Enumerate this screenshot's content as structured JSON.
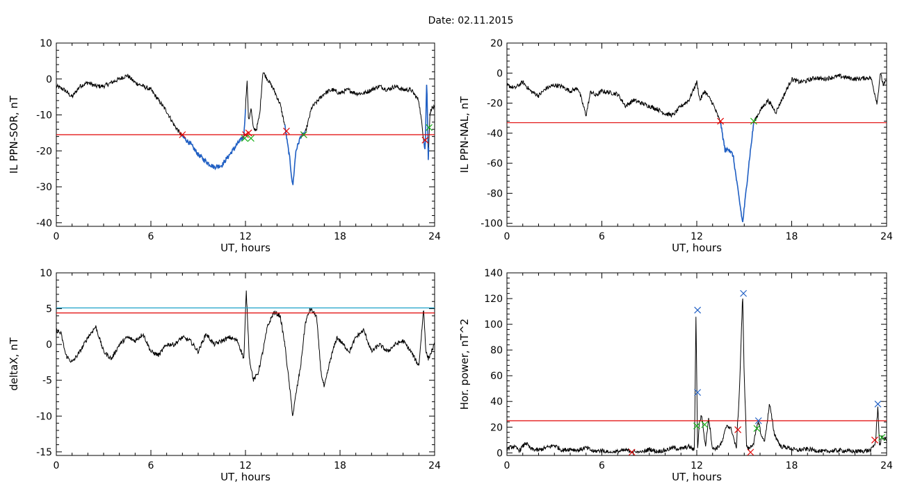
{
  "page": {
    "title": "Date:  02.11.2015"
  },
  "colors": {
    "trace": "#000000",
    "threshold": "#e00000",
    "highlight": "#1f5fc4",
    "marker_red": "#e00000",
    "marker_green": "#18b018",
    "marker_blue": "#1f5fc4",
    "cyan": "#1aa0c8"
  },
  "chart_data": [
    {
      "id": "il-sor",
      "type": "line",
      "xlabel": "UT, hours",
      "ylabel": "IL PPN-SOR, nT",
      "xlim": [
        0,
        24
      ],
      "ylim": [
        -41,
        10
      ],
      "xticks": [
        0,
        6,
        12,
        18,
        24
      ],
      "yticks": [
        -40,
        -30,
        -20,
        -10,
        0,
        10
      ],
      "threshold": -15.5,
      "x": [
        0,
        0.5,
        1.0,
        1.5,
        2.0,
        2.5,
        3.0,
        3.5,
        4.0,
        4.5,
        5.0,
        5.5,
        6.0,
        6.5,
        7.0,
        7.5,
        8.0,
        8.5,
        9.0,
        9.5,
        10.0,
        10.5,
        11.0,
        11.5,
        11.9,
        12.1,
        12.2,
        12.35,
        12.5,
        12.7,
        12.9,
        13.1,
        13.4,
        13.8,
        14.2,
        14.5,
        14.8,
        15.0,
        15.2,
        15.5,
        15.8,
        16.2,
        16.6,
        17.0,
        17.5,
        18.0,
        18.5,
        19.0,
        19.5,
        20.0,
        20.5,
        21.0,
        21.5,
        22.0,
        22.5,
        23.0,
        23.4,
        23.5,
        23.6,
        23.7,
        23.8,
        24.0
      ],
      "y": [
        -2,
        -3,
        -5,
        -2,
        -1,
        -2,
        -2,
        -1,
        0,
        1,
        -1,
        -2,
        -3,
        -6,
        -9,
        -13,
        -16,
        -18,
        -21,
        -23,
        -24.5,
        -24,
        -21,
        -18,
        -16,
        0,
        -12,
        -8,
        -14,
        -14,
        -10,
        2,
        0,
        -3,
        -7,
        -13,
        -22,
        -30,
        -20,
        -16,
        -15,
        -8,
        -6,
        -4,
        -3,
        -4,
        -3,
        -4,
        -4,
        -3,
        -2,
        -3,
        -2,
        -3,
        -3,
        -6,
        -20,
        0,
        -22,
        -10,
        -8,
        -8
      ],
      "highlight_ranges": [
        [
          8.0,
          12.0
        ],
        [
          14.5,
          15.8
        ],
        [
          23.3,
          23.65
        ]
      ],
      "markers": [
        {
          "x": 8.0,
          "y": -15.5,
          "color": "red"
        },
        {
          "x": 12.0,
          "y": -15.5,
          "color": "red"
        },
        {
          "x": 12.2,
          "y": -15.0,
          "color": "red"
        },
        {
          "x": 11.95,
          "y": -16.5,
          "color": "green"
        },
        {
          "x": 12.35,
          "y": -16.5,
          "color": "green"
        },
        {
          "x": 14.6,
          "y": -14.5,
          "color": "red"
        },
        {
          "x": 15.7,
          "y": -15.5,
          "color": "red"
        },
        {
          "x": 15.7,
          "y": -15.5,
          "color": "green"
        },
        {
          "x": 23.4,
          "y": -17.0,
          "color": "red"
        },
        {
          "x": 23.65,
          "y": -13.5,
          "color": "green"
        }
      ]
    },
    {
      "id": "il-nal",
      "type": "line",
      "xlabel": "UT, hours",
      "ylabel": "IL PPN-NAL, nT",
      "xlim": [
        0,
        24
      ],
      "ylim": [
        -102,
        20
      ],
      "xticks": [
        0,
        6,
        12,
        18,
        24
      ],
      "yticks": [
        -100,
        -80,
        -60,
        -40,
        -20,
        0,
        20
      ],
      "threshold": -33,
      "x": [
        0,
        0.5,
        1.0,
        1.5,
        2.0,
        2.5,
        3.0,
        3.5,
        4.0,
        4.5,
        5.0,
        5.3,
        5.6,
        6.0,
        6.5,
        7.0,
        7.5,
        8.0,
        8.5,
        9.0,
        9.5,
        10.0,
        10.5,
        11.0,
        11.5,
        12.0,
        12.2,
        12.5,
        13.0,
        13.5,
        13.8,
        14.0,
        14.3,
        14.6,
        14.9,
        15.1,
        15.3,
        15.6,
        16.0,
        16.5,
        17.0,
        17.5,
        18.0,
        18.5,
        19.0,
        19.5,
        20.0,
        21.0,
        22.0,
        23.0,
        23.4,
        23.6,
        23.8,
        24.0
      ],
      "y": [
        -8,
        -10,
        -6,
        -12,
        -15,
        -10,
        -8,
        -9,
        -12,
        -10,
        -28,
        -12,
        -15,
        -12,
        -13,
        -14,
        -22,
        -18,
        -20,
        -22,
        -24,
        -27,
        -28,
        -22,
        -18,
        -6,
        -18,
        -12,
        -20,
        -33,
        -52,
        -50,
        -55,
        -78,
        -100,
        -80,
        -60,
        -33,
        -25,
        -18,
        -26,
        -15,
        -4,
        -6,
        -5,
        -3,
        -4,
        -2,
        -4,
        -3,
        -20,
        0,
        -8,
        -5
      ],
      "highlight_ranges": [
        [
          13.5,
          15.6
        ]
      ],
      "markers": [
        {
          "x": 13.5,
          "y": -32,
          "color": "red"
        },
        {
          "x": 15.6,
          "y": -32,
          "color": "green"
        }
      ]
    },
    {
      "id": "deltax",
      "type": "line",
      "xlabel": "UT, hours",
      "ylabel": "deltaX, nT",
      "xlim": [
        0,
        24
      ],
      "ylim": [
        -15.5,
        10
      ],
      "xticks": [
        0,
        6,
        12,
        18,
        24
      ],
      "yticks": [
        -15,
        -10,
        -5,
        0,
        5,
        10
      ],
      "threshold": 4.4,
      "threshold2": 5.1,
      "x": [
        0,
        0.3,
        0.6,
        1.0,
        1.5,
        2.0,
        2.5,
        3.0,
        3.5,
        4.0,
        4.5,
        5.0,
        5.5,
        6.0,
        6.5,
        7.0,
        7.5,
        8.0,
        8.5,
        9.0,
        9.5,
        10.0,
        10.5,
        11.0,
        11.5,
        11.9,
        12.05,
        12.25,
        12.5,
        12.8,
        13.1,
        13.4,
        13.8,
        14.2,
        14.5,
        14.8,
        15.0,
        15.2,
        15.5,
        15.8,
        16.1,
        16.5,
        16.8,
        17.0,
        17.4,
        17.8,
        18.2,
        18.6,
        19.0,
        19.5,
        20.0,
        20.5,
        21.0,
        21.5,
        22.0,
        22.5,
        23.0,
        23.3,
        23.45,
        23.6,
        23.8,
        24.0
      ],
      "y": [
        2,
        1.5,
        -1.5,
        -2.5,
        -1,
        1,
        2.5,
        -1,
        -2,
        0,
        1,
        0.5,
        1.5,
        -1,
        -1.5,
        0,
        0,
        1,
        0.5,
        -1,
        1.5,
        0,
        0.5,
        1,
        0.5,
        -2,
        7.5,
        -2,
        -5,
        -4,
        -1,
        2.5,
        4.5,
        4,
        0,
        -6,
        -10,
        -7,
        -3,
        3,
        5,
        4,
        -4,
        -6,
        -2,
        1,
        0,
        -1,
        1,
        2,
        -1,
        0,
        -1,
        0,
        0.5,
        -1,
        -3,
        5,
        -1,
        -2,
        -1,
        0
      ],
      "markers": []
    },
    {
      "id": "hor-power",
      "type": "line",
      "xlabel": "UT, hours",
      "ylabel": "Hor. power, nT^2",
      "xlim": [
        0,
        24
      ],
      "ylim": [
        -2,
        140
      ],
      "xticks": [
        0,
        6,
        12,
        18,
        24
      ],
      "yticks": [
        0,
        20,
        40,
        60,
        80,
        100,
        120,
        140
      ],
      "threshold": 25,
      "x": [
        0,
        0.4,
        0.8,
        1.2,
        1.5,
        2.0,
        2.5,
        3.0,
        3.5,
        4.0,
        4.5,
        5.0,
        5.5,
        6.0,
        6.5,
        7.0,
        7.5,
        8.0,
        8.5,
        9.0,
        9.5,
        10.0,
        10.5,
        11.0,
        11.5,
        11.85,
        11.95,
        12.05,
        12.15,
        12.3,
        12.55,
        12.75,
        13.0,
        13.3,
        13.6,
        13.9,
        14.2,
        14.5,
        14.7,
        14.9,
        15.0,
        15.15,
        15.3,
        15.6,
        15.9,
        16.1,
        16.3,
        16.6,
        16.9,
        17.3,
        17.8,
        18.3,
        19.0,
        20.0,
        21.0,
        22.0,
        23.0,
        23.3,
        23.45,
        23.55,
        23.7,
        24.0
      ],
      "y": [
        3,
        5,
        2,
        8,
        3,
        2,
        4,
        6,
        2,
        3,
        2,
        4,
        1,
        2,
        0,
        1,
        2,
        1,
        0,
        3,
        1,
        2,
        4,
        3,
        5,
        2,
        110,
        2,
        22,
        30,
        5,
        28,
        3,
        4,
        8,
        22,
        18,
        3,
        50,
        123,
        60,
        5,
        3,
        8,
        25,
        12,
        10,
        38,
        15,
        5,
        4,
        2,
        3,
        1,
        2,
        1,
        2,
        8,
        37,
        5,
        12,
        10
      ],
      "markers": [
        {
          "x": 12.05,
          "y": 111,
          "color": "blue"
        },
        {
          "x": 12.05,
          "y": 47,
          "color": "blue"
        },
        {
          "x": 12.0,
          "y": 21,
          "color": "green"
        },
        {
          "x": 12.5,
          "y": 22,
          "color": "green"
        },
        {
          "x": 14.95,
          "y": 124,
          "color": "blue"
        },
        {
          "x": 14.6,
          "y": 18,
          "color": "red"
        },
        {
          "x": 15.9,
          "y": 25,
          "color": "blue"
        },
        {
          "x": 15.8,
          "y": 19,
          "color": "green"
        },
        {
          "x": 15.4,
          "y": 0.5,
          "color": "red"
        },
        {
          "x": 7.9,
          "y": 0.5,
          "color": "red"
        },
        {
          "x": 23.45,
          "y": 38,
          "color": "blue"
        },
        {
          "x": 23.25,
          "y": 10,
          "color": "red"
        },
        {
          "x": 23.7,
          "y": 12,
          "color": "green"
        }
      ]
    }
  ]
}
